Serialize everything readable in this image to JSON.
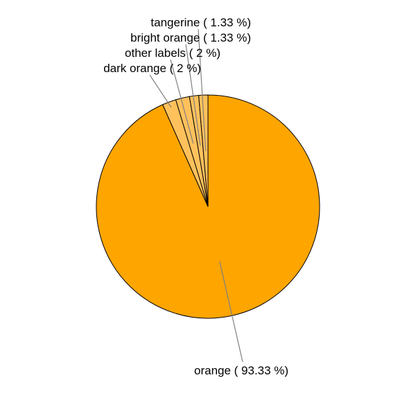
{
  "chart_data": {
    "type": "pie",
    "title": "",
    "slices": [
      {
        "label": "orange",
        "value": 93.33,
        "label_text": "orange ( 93.33 %)",
        "color": "#FFA500"
      },
      {
        "label": "dark orange",
        "value": 2,
        "label_text": "dark orange ( 2 %)",
        "color": "#FFC15C"
      },
      {
        "label": "other labels",
        "value": 2,
        "label_text": "other labels ( 2 %)",
        "color": "#FFC15C"
      },
      {
        "label": "bright orange",
        "value": 1.33,
        "label_text": "bright orange ( 1.33 %)",
        "color": "#FFC15C"
      },
      {
        "label": "tangerine",
        "value": 1.33,
        "label_text": "tangerine ( 1.33 %)",
        "color": "#FFC15C"
      }
    ],
    "start_angle": "12 o'clock",
    "direction": "clockwise",
    "border_color": "#000000",
    "leader_line_color": "#808080"
  }
}
